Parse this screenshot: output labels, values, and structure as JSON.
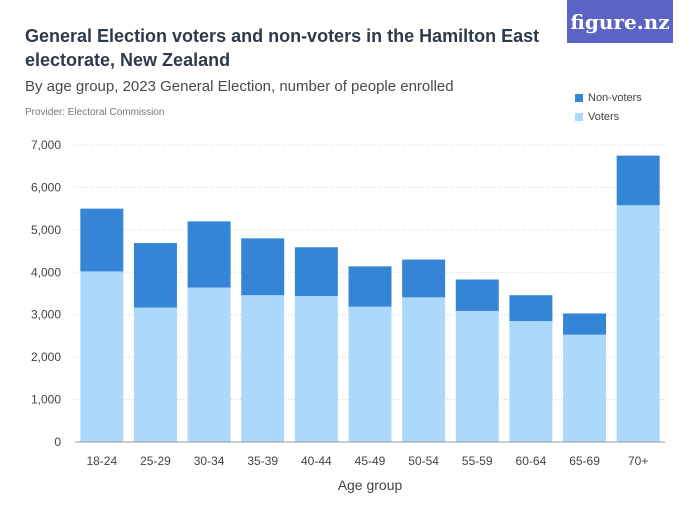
{
  "header": {
    "title": "General Election voters and non-voters in the Hamilton East electorate, New Zealand",
    "subtitle": "By age group, 2023 General Election, number of people enrolled",
    "provider": "Provider: Electoral Commission",
    "logo_text": "figure.nz"
  },
  "colors": {
    "brand": "#5b63c5",
    "voters": "#acd8fb",
    "non_voters": "#3585d6"
  },
  "chart_data": {
    "type": "bar",
    "stacked": true,
    "categories": [
      "18-24",
      "25-29",
      "30-34",
      "35-39",
      "40-44",
      "45-49",
      "50-54",
      "55-59",
      "60-64",
      "65-69",
      "70+"
    ],
    "series": [
      {
        "name": "Voters",
        "values": [
          4020,
          3170,
          3640,
          3460,
          3440,
          3190,
          3410,
          3090,
          2850,
          2530,
          5580
        ]
      },
      {
        "name": "Non-voters",
        "values": [
          1480,
          1520,
          1560,
          1340,
          1150,
          950,
          890,
          740,
          610,
          500,
          1170
        ]
      }
    ],
    "xlabel": "Age group",
    "ylabel": "",
    "ylim": [
      0,
      7000
    ],
    "yticks": [
      0,
      1000,
      2000,
      3000,
      4000,
      5000,
      6000,
      7000
    ],
    "ytick_labels": [
      "0",
      "1,000",
      "2,000",
      "3,000",
      "4,000",
      "5,000",
      "6,000",
      "7,000"
    ],
    "grid": true,
    "legend_position": "top-right",
    "legend": [
      "Non-voters",
      "Voters"
    ]
  }
}
